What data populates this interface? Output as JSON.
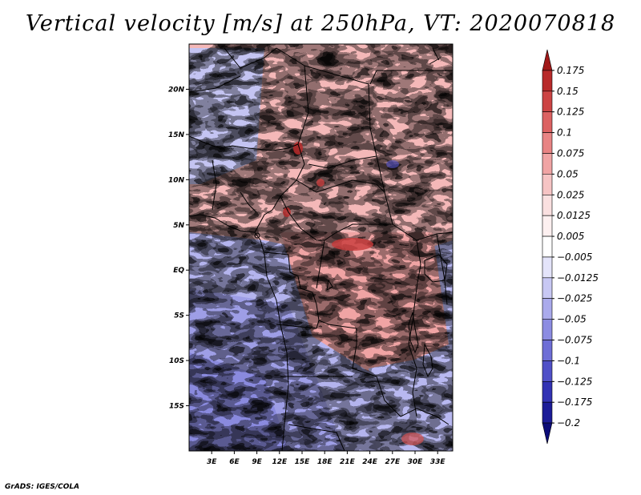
{
  "chart_data": {
    "type": "heatmap",
    "title": "Vertical velocity [m/s] at 250hPa, VT: 2020070818",
    "variable": "Vertical velocity",
    "units": "m/s",
    "level": "250hPa",
    "valid_time": "2020070818",
    "lon_range": [
      0,
      35
    ],
    "lat_range": [
      -20,
      25
    ],
    "x_ticks": [
      {
        "value": 3,
        "label": "3E"
      },
      {
        "value": 6,
        "label": "6E"
      },
      {
        "value": 9,
        "label": "9E"
      },
      {
        "value": 12,
        "label": "12E"
      },
      {
        "value": 15,
        "label": "15E"
      },
      {
        "value": 18,
        "label": "18E"
      },
      {
        "value": 21,
        "label": "21E"
      },
      {
        "value": 24,
        "label": "24E"
      },
      {
        "value": 27,
        "label": "27E"
      },
      {
        "value": 30,
        "label": "30E"
      },
      {
        "value": 33,
        "label": "33E"
      }
    ],
    "y_ticks": [
      {
        "value": 20,
        "label": "20N"
      },
      {
        "value": 15,
        "label": "15N"
      },
      {
        "value": 10,
        "label": "10N"
      },
      {
        "value": 5,
        "label": "5N"
      },
      {
        "value": 0,
        "label": "EQ"
      },
      {
        "value": -5,
        "label": "5S"
      },
      {
        "value": -10,
        "label": "10S"
      },
      {
        "value": -15,
        "label": "15S"
      }
    ],
    "colorbar": {
      "levels": [
        "0.175",
        "0.15",
        "0.125",
        "0.1",
        "0.075",
        "0.05",
        "0.025",
        "0.0125",
        "0.005",
        "-0.005",
        "-0.0125",
        "-0.025",
        "-0.05",
        "-0.075",
        "-0.1",
        "-0.125",
        "-0.175",
        "-0.2"
      ],
      "colors": [
        "#a01818",
        "#b82a2a",
        "#cc4444",
        "#dc6262",
        "#e88484",
        "#f0a4a4",
        "#f6c4c4",
        "#fae0e0",
        "#fdf0f0",
        "#ffffff",
        "#e4e4fa",
        "#c8c8f4",
        "#aaaaec",
        "#8c8ce2",
        "#6e6ed6",
        "#5050c8",
        "#3232b4",
        "#1c1c98",
        "#0c0c78"
      ]
    }
  },
  "credit": "GrADS: IGES/COLA"
}
